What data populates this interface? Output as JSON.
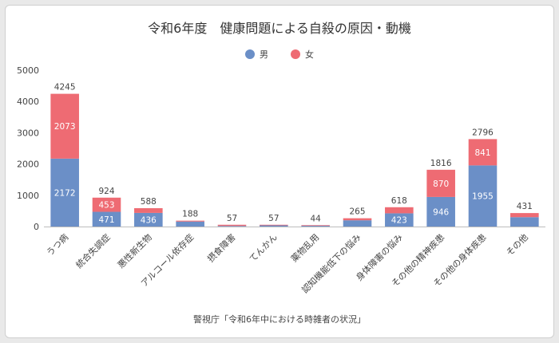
{
  "chart_data": {
    "type": "bar",
    "stacked": true,
    "title": "令和6年度　健康問題による自殺の原因・動機",
    "source": "警視庁「令和6年中における時雑者の状況」",
    "categories": [
      "うつ病",
      "統合失調症",
      "悪性新生物",
      "アルコール依存症",
      "摂食障害",
      "てんかん",
      "薬物乱用",
      "認知機能低下の悩み",
      "身体障害の悩み",
      "その他の精神疾患",
      "その他の身体疾患",
      "その他"
    ],
    "series": [
      {
        "name": "男",
        "color": "#6b8fc7",
        "values": [
          2172,
          471,
          436,
          160,
          20,
          45,
          30,
          200,
          423,
          946,
          1955,
          300
        ],
        "labels": [
          "2172",
          "471",
          "436",
          null,
          null,
          null,
          null,
          null,
          "423",
          "946",
          "1955",
          null
        ]
      },
      {
        "name": "女",
        "color": "#ee6b73",
        "values": [
          2073,
          453,
          152,
          28,
          37,
          12,
          14,
          65,
          195,
          870,
          841,
          131
        ],
        "labels": [
          "2073",
          "453",
          null,
          null,
          null,
          null,
          null,
          null,
          null,
          "870",
          "841",
          null
        ]
      }
    ],
    "totals": [
      4245,
      924,
      588,
      188,
      57,
      57,
      44,
      265,
      618,
      1816,
      2796,
      431
    ],
    "ylim": [
      0,
      5000
    ],
    "yticks": [
      0,
      1000,
      2000,
      3000,
      4000,
      5000
    ],
    "legend_position": "top-center",
    "grid": false
  }
}
